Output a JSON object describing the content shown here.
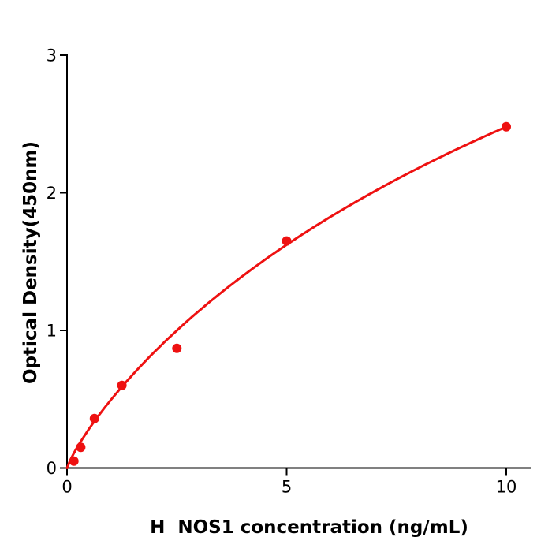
{
  "chart_data": {
    "type": "scatter",
    "title": "",
    "xlabel": "H  NOS1 concentration (ng/mL)",
    "ylabel": "Optical Density(450nm)",
    "x": [
      0.156,
      0.3125,
      0.625,
      1.25,
      2.5,
      5,
      10
    ],
    "y": [
      0.05,
      0.15,
      0.36,
      0.6,
      0.87,
      1.65,
      2.48
    ],
    "x_ticks": [
      0,
      5,
      10
    ],
    "y_ticks": [
      0,
      1,
      2,
      3
    ],
    "xlim": [
      0,
      10.56
    ],
    "ylim": [
      0,
      3
    ],
    "grid": false,
    "legend": false,
    "marker_color": "#ee1111",
    "line_color": "#ee1111",
    "axis_color": "#000000",
    "fit_curve": {
      "model": "y = a * x^p / (k + x^p)",
      "a": 7.26,
      "k": 13.65,
      "p": 0.85,
      "x_start": 0,
      "x_end": 10
    }
  }
}
